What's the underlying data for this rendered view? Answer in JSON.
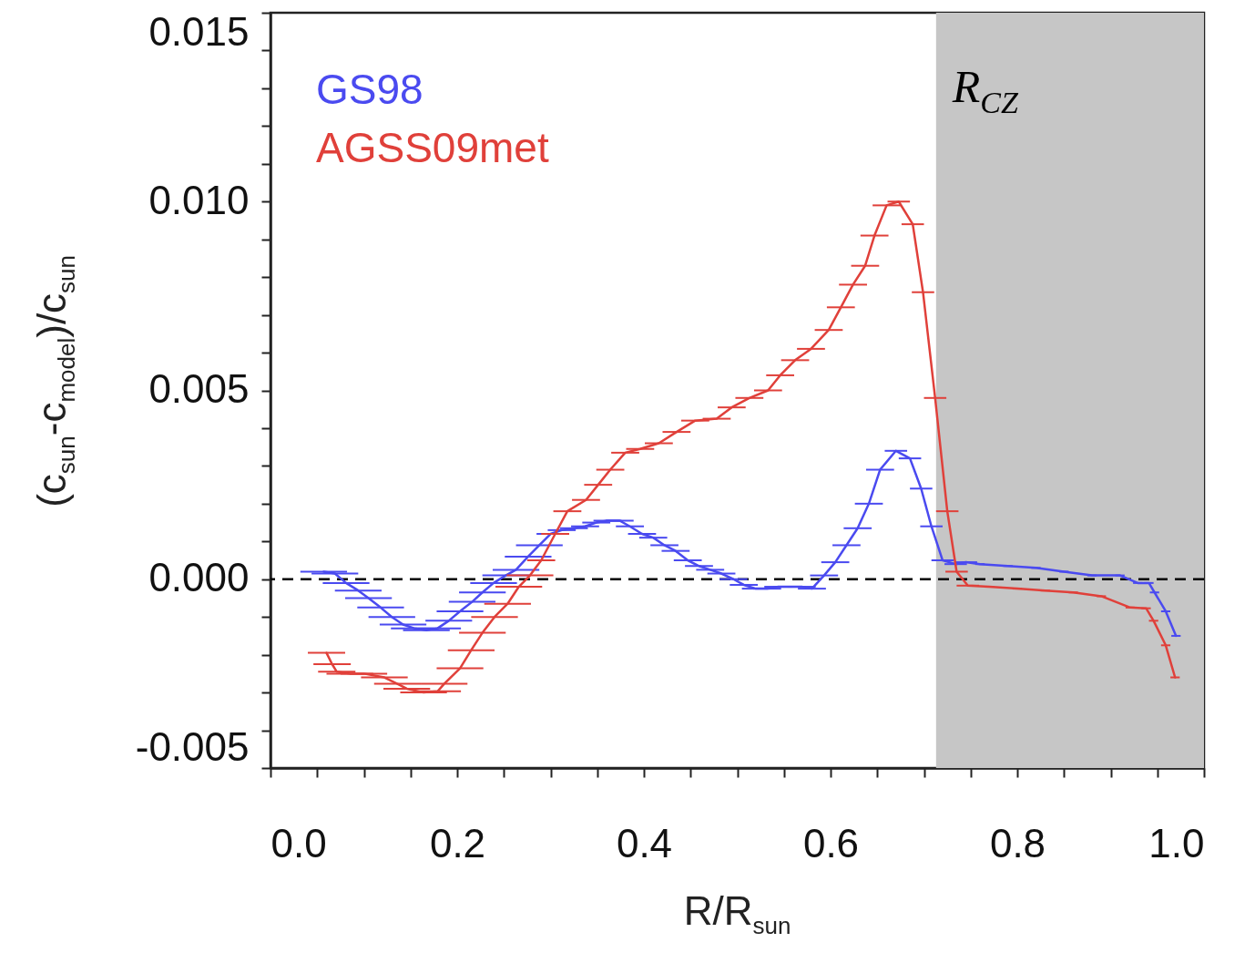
{
  "chart_data": {
    "type": "line",
    "xlabel": "R/R$_{sun}$",
    "ylabel": "(c$_{sun}$-c$_{model}$)/c$_{sun}$",
    "xlim": [
      0,
      1.0
    ],
    "ylim": [
      -0.005,
      0.015
    ],
    "xticks": [
      {
        "value": 0,
        "label": "0.0"
      },
      {
        "value": 0.05,
        "label": null
      },
      {
        "value": 0.1,
        "label": null
      },
      {
        "value": 0.15,
        "label": null
      },
      0.2,
      {
        "value": 0.25,
        "label": null
      },
      {
        "value": 0.3,
        "label": null
      },
      {
        "value": 0.35,
        "label": null
      },
      0.4,
      {
        "value": 0.45,
        "label": null
      },
      {
        "value": 0.5,
        "label": null
      },
      {
        "value": 0.55,
        "label": null
      },
      0.6,
      {
        "value": 0.65,
        "label": null
      },
      {
        "value": 0.7,
        "label": null
      },
      {
        "value": 0.75,
        "label": null
      },
      0.8,
      {
        "value": 0.85,
        "label": null
      },
      {
        "value": 0.9,
        "label": null
      },
      {
        "value": 0.95,
        "label": null
      },
      {
        "value": 1.0,
        "label": "1.0"
      }
    ],
    "yticks": [
      {
        "value": -0.005,
        "label": "-0.005"
      },
      {
        "value": -0.004,
        "label": null
      },
      {
        "value": -0.003,
        "label": null
      },
      {
        "value": -0.002,
        "label": null
      },
      {
        "value": -0.001,
        "label": null
      },
      {
        "value": 0,
        "label": "0.000"
      },
      {
        "value": 0.001,
        "label": null
      },
      {
        "value": 0.002,
        "label": null
      },
      {
        "value": 0.003,
        "label": null
      },
      {
        "value": 0.004,
        "label": null
      },
      {
        "value": 0.005,
        "label": "0.005"
      },
      {
        "value": 0.006,
        "label": null
      },
      {
        "value": 0.007,
        "label": null
      },
      {
        "value": 0.008,
        "label": null
      },
      {
        "value": 0.009,
        "label": null
      },
      {
        "value": 0.01,
        "label": "0.010"
      },
      {
        "value": 0.011,
        "label": null
      },
      {
        "value": 0.012,
        "label": null
      },
      {
        "value": 0.013,
        "label": null
      },
      {
        "value": 0.014,
        "label": null
      },
      {
        "value": 0.015,
        "label": "0.015"
      }
    ],
    "grid": false,
    "line_style": "solid",
    "ref_lines": [
      {
        "axis": "y",
        "value": 0,
        "color": "#000000",
        "line_style": "dashed"
      }
    ],
    "bands": [
      {
        "axis": "x",
        "from": 0.713,
        "to": 1.0,
        "label": "R$_{CZ}$",
        "color": "#c6c6c6"
      }
    ],
    "series": [
      {
        "name": "GS98",
        "color": "#4a4af0",
        "x": [
          0.057,
          0.069,
          0.081,
          0.094,
          0.105,
          0.118,
          0.13,
          0.142,
          0.154,
          0.167,
          0.179,
          0.191,
          0.203,
          0.216,
          0.227,
          0.239,
          0.252,
          0.263,
          0.276,
          0.288,
          0.3,
          0.312,
          0.325,
          0.337,
          0.349,
          0.361,
          0.374,
          0.385,
          0.398,
          0.41,
          0.422,
          0.434,
          0.447,
          0.459,
          0.471,
          0.483,
          0.496,
          0.507,
          0.52,
          0.532,
          0.544,
          0.556,
          0.569,
          0.58,
          0.593,
          0.605,
          0.617,
          0.629,
          0.641,
          0.653,
          0.67,
          0.685,
          0.697,
          0.708,
          0.72,
          0.734,
          0.745,
          0.76,
          0.79,
          0.82,
          0.85,
          0.88,
          0.91,
          0.929,
          0.941,
          0.947,
          0.959,
          0.97
        ],
        "values": [
          0.0002,
          0.00015,
          -0.0001,
          -0.0003,
          -0.0005,
          -0.00075,
          -0.001,
          -0.0012,
          -0.0013,
          -0.00135,
          -0.0013,
          -0.0011,
          -0.00085,
          -0.0006,
          -0.00035,
          -0.0001,
          0.0001,
          0.00025,
          0.0006,
          0.0009,
          0.0012,
          0.0013,
          0.00135,
          0.0014,
          0.0015,
          0.00155,
          0.00155,
          0.0014,
          0.0012,
          0.0011,
          0.0009,
          0.00075,
          0.0005,
          0.00035,
          0.00025,
          0.00015,
          0,
          -0.00015,
          -0.00025,
          -0.00025,
          -0.0002,
          -0.0002,
          -0.0002,
          -0.00025,
          0.0001,
          0.00045,
          0.0009,
          0.00135,
          0.002,
          0.0029,
          0.0034,
          0.0032,
          0.0024,
          0.0014,
          0.0005,
          0.0004,
          0.00045,
          0.0004,
          0.00035,
          0.0003,
          0.0002,
          0.0001,
          0.0001,
          -0.0001,
          -0.0001,
          -0.00035,
          -0.00085,
          -0.0015
        ],
        "xerrors": [
          0.025,
          0.025,
          0.025,
          0.025,
          0.025,
          0.025,
          0.025,
          0.025,
          0.025,
          0.025,
          0.025,
          0.025,
          0.025,
          0.025,
          0.025,
          0.025,
          0.025,
          0.025,
          0.025,
          0.025,
          0.015,
          0.015,
          0.015,
          0.015,
          0.015,
          0.015,
          0.015,
          0.015,
          0.015,
          0.015,
          0.015,
          0.015,
          0.015,
          0.015,
          0.015,
          0.015,
          0.015,
          0.015,
          0.015,
          0.015,
          0.015,
          0.015,
          0.015,
          0.015,
          0.015,
          0.015,
          0.015,
          0.015,
          0.015,
          0.015,
          0.012,
          0.012,
          0.012,
          0.012,
          0.012,
          0.012,
          0.012,
          0.005,
          0.005,
          0.005,
          0.005,
          0.005,
          0.005,
          0.005,
          0.005,
          0.005,
          0.005,
          0.005
        ]
      },
      {
        "name": "AGSS09met",
        "color": "#e0403a",
        "x": [
          0.06,
          0.066,
          0.071,
          0.085,
          0.1,
          0.122,
          0.136,
          0.146,
          0.164,
          0.179,
          0.186,
          0.203,
          0.215,
          0.227,
          0.24,
          0.254,
          0.266,
          0.278,
          0.29,
          0.305,
          0.318,
          0.338,
          0.351,
          0.364,
          0.38,
          0.396,
          0.416,
          0.435,
          0.455,
          0.478,
          0.494,
          0.513,
          0.533,
          0.546,
          0.562,
          0.579,
          0.598,
          0.611,
          0.624,
          0.637,
          0.647,
          0.66,
          0.673,
          0.688,
          0.699,
          0.712,
          0.725,
          0.735,
          0.747,
          0.77,
          0.8,
          0.83,
          0.86,
          0.89,
          0.921,
          0.938,
          0.946,
          0.959,
          0.969
        ],
        "values": [
          -0.00195,
          -0.00225,
          -0.00245,
          -0.0025,
          -0.0025,
          -0.0026,
          -0.00277,
          -0.0029,
          -0.003,
          -0.00297,
          -0.00277,
          -0.00236,
          -0.00188,
          -0.00142,
          -0.001,
          -0.00065,
          -0.0002,
          0.0001,
          0.0005,
          0.0012,
          0.0018,
          0.0021,
          0.0025,
          0.0029,
          0.00335,
          0.00345,
          0.0036,
          0.0039,
          0.0042,
          0.00425,
          0.00455,
          0.0048,
          0.005,
          0.0054,
          0.0058,
          0.0061,
          0.0066,
          0.0072,
          0.0078,
          0.0083,
          0.0091,
          0.0099,
          0.01,
          0.0094,
          0.0076,
          0.0048,
          0.0018,
          0.0002,
          -0.00017,
          -0.0002,
          -0.00025,
          -0.0003,
          -0.00035,
          -0.00045,
          -0.00075,
          -0.00077,
          -0.0011,
          -0.00175,
          -0.0026
        ],
        "xerrors": [
          0.02,
          0.02,
          0.02,
          0.025,
          0.025,
          0.025,
          0.025,
          0.025,
          0.025,
          0.025,
          0.025,
          0.025,
          0.025,
          0.025,
          0.025,
          0.025,
          0.025,
          0.025,
          0.015,
          0.015,
          0.015,
          0.015,
          0.015,
          0.015,
          0.015,
          0.015,
          0.015,
          0.015,
          0.015,
          0.015,
          0.015,
          0.015,
          0.015,
          0.015,
          0.015,
          0.015,
          0.015,
          0.015,
          0.015,
          0.015,
          0.015,
          0.015,
          0.012,
          0.012,
          0.012,
          0.012,
          0.012,
          0.012,
          0.012,
          0.005,
          0.005,
          0.005,
          0.005,
          0.005,
          0.005,
          0.005,
          0.005,
          0.005,
          0.005
        ]
      }
    ]
  }
}
